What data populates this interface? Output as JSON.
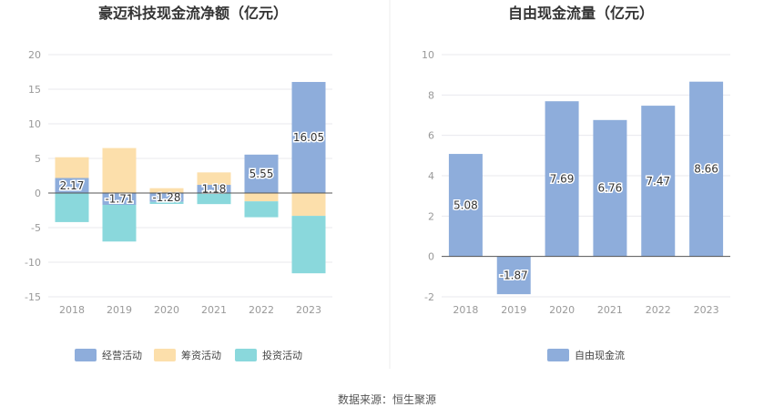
{
  "source_note": "数据来源：恒生聚源",
  "colors": {
    "operating": "#8eaddb",
    "financing": "#fcdfab",
    "investing": "#8ad8dc",
    "free_cash": "#8eaddb",
    "grid": "#e8e8ee",
    "axis_text": "#999999",
    "title": "#333333"
  },
  "chart_data": [
    {
      "type": "bar",
      "stacked": true,
      "title": "豪迈科技现金流净额（亿元）",
      "categories": [
        "2018",
        "2019",
        "2020",
        "2021",
        "2022",
        "2023"
      ],
      "ylim": [
        -15,
        20
      ],
      "yticks": [
        "20",
        "15",
        "10",
        "5",
        "0",
        "-5",
        "-10",
        "-15"
      ],
      "grid": true,
      "legend_position": "bottom",
      "series": [
        {
          "name": "经营活动",
          "values": [
            2.17,
            -1.71,
            -1.28,
            1.18,
            5.55,
            16.05
          ]
        },
        {
          "name": "筹资活动",
          "values": [
            3.0,
            6.5,
            0.7,
            1.8,
            -1.2,
            -3.3
          ]
        },
        {
          "name": "投资活动",
          "values": [
            -4.2,
            -5.3,
            -0.3,
            -1.6,
            -2.3,
            -8.3
          ]
        }
      ],
      "data_labels": [
        "2.17",
        "-1.71",
        "-1.28",
        "1.18",
        "5.55",
        "16.05"
      ]
    },
    {
      "type": "bar",
      "title": "自由现金流量（亿元）",
      "categories": [
        "2018",
        "2019",
        "2020",
        "2021",
        "2022",
        "2023"
      ],
      "ylim": [
        -2,
        10
      ],
      "yticks": [
        "10",
        "8",
        "6",
        "4",
        "2",
        "0",
        "-2"
      ],
      "grid": true,
      "legend_position": "bottom",
      "series": [
        {
          "name": "自由现金流",
          "values": [
            5.08,
            -1.87,
            7.69,
            6.76,
            7.47,
            8.66
          ]
        }
      ],
      "data_labels": [
        "5.08",
        "-1.87",
        "7.69",
        "6.76",
        "7.47",
        "8.66"
      ]
    }
  ]
}
